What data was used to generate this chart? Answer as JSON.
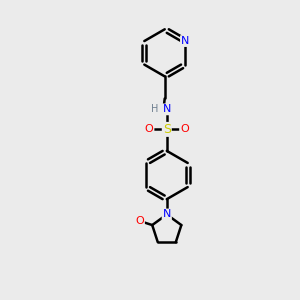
{
  "bg_color": "#ebebeb",
  "atom_colors": {
    "C": "#000000",
    "N": "#0000ff",
    "O": "#ff0000",
    "S": "#cccc00",
    "H": "#708090"
  },
  "bond_color": "#000000",
  "bond_width": 1.8
}
